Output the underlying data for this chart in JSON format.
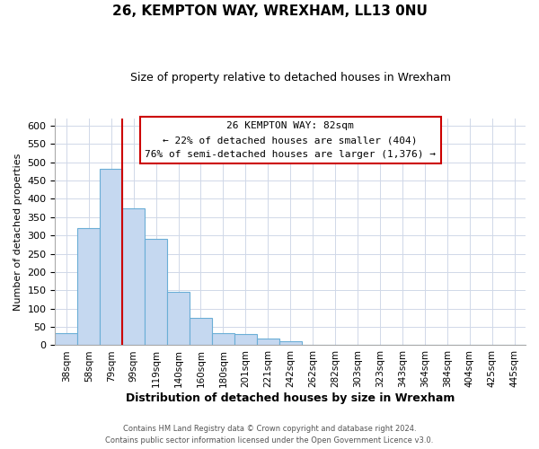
{
  "title": "26, KEMPTON WAY, WREXHAM, LL13 0NU",
  "subtitle": "Size of property relative to detached houses in Wrexham",
  "xlabel": "Distribution of detached houses by size in Wrexham",
  "ylabel": "Number of detached properties",
  "bar_labels": [
    "38sqm",
    "58sqm",
    "79sqm",
    "99sqm",
    "119sqm",
    "140sqm",
    "160sqm",
    "180sqm",
    "201sqm",
    "221sqm",
    "242sqm",
    "262sqm",
    "282sqm",
    "303sqm",
    "323sqm",
    "343sqm",
    "364sqm",
    "384sqm",
    "404sqm",
    "425sqm",
    "445sqm"
  ],
  "bar_values": [
    32,
    320,
    483,
    375,
    290,
    145,
    75,
    32,
    30,
    18,
    10,
    2,
    1,
    0,
    0,
    0,
    0,
    0,
    0,
    0,
    2
  ],
  "bar_color": "#c5d8f0",
  "bar_edge_color": "#6aaed6",
  "highlight_line_color": "#cc0000",
  "highlight_bar_index": 2,
  "ylim": [
    0,
    620
  ],
  "yticks": [
    0,
    50,
    100,
    150,
    200,
    250,
    300,
    350,
    400,
    450,
    500,
    550,
    600
  ],
  "annotation_title": "26 KEMPTON WAY: 82sqm",
  "annotation_line1": "← 22% of detached houses are smaller (404)",
  "annotation_line2": "76% of semi-detached houses are larger (1,376) →",
  "annotation_box_color": "#ffffff",
  "annotation_box_edge": "#cc0000",
  "footer1": "Contains HM Land Registry data © Crown copyright and database right 2024.",
  "footer2": "Contains public sector information licensed under the Open Government Licence v3.0."
}
